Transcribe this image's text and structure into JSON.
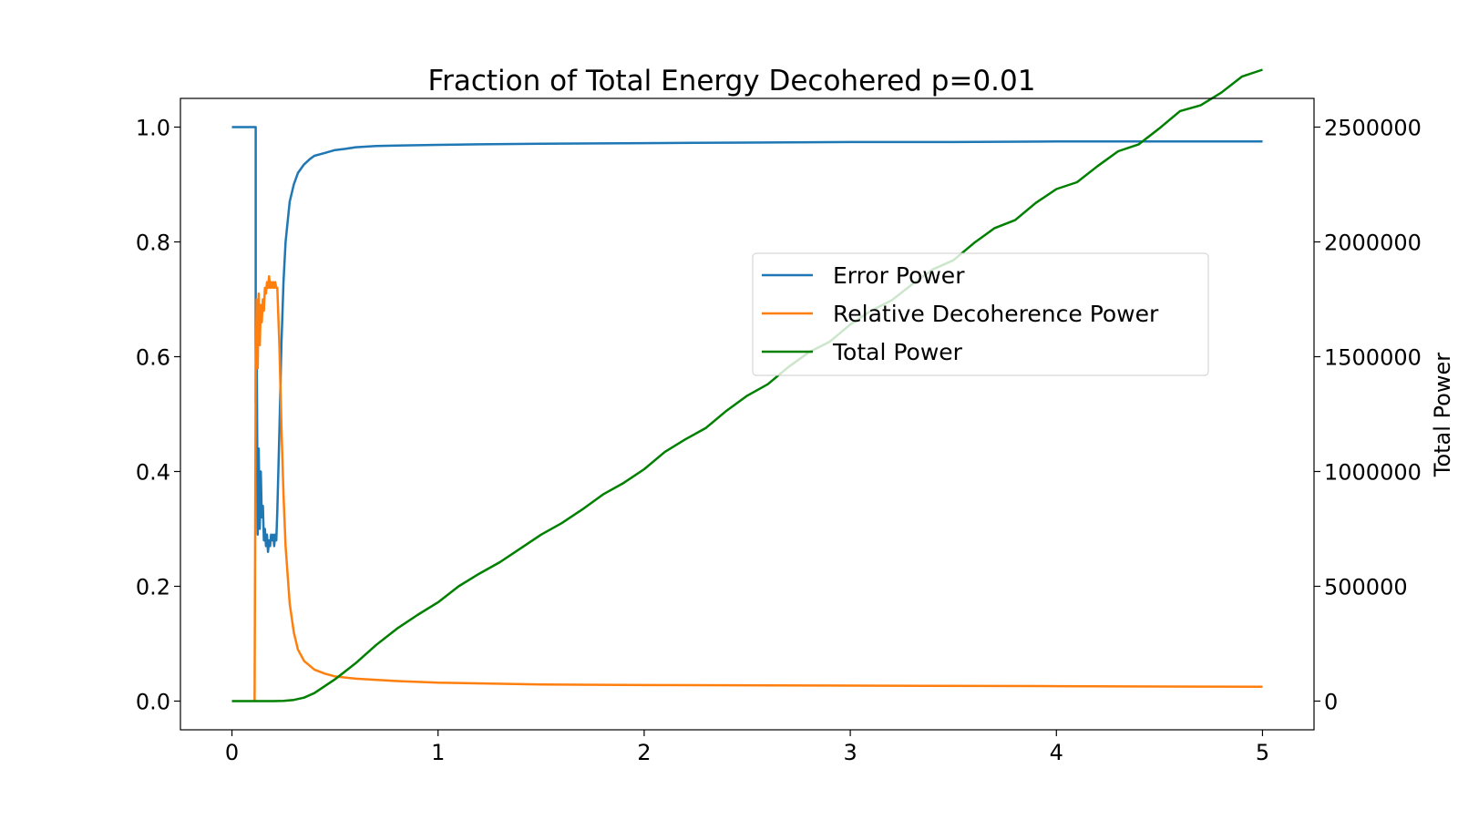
{
  "chart_data": {
    "type": "line",
    "title": "Fraction of Total Energy Decohered p=0.01",
    "xlabel": "",
    "ylabel": "",
    "y2label": "Total Power",
    "xlim": [
      -0.25,
      5.25
    ],
    "ylim": [
      -0.05,
      1.05
    ],
    "y2lim": [
      -125000,
      2625000
    ],
    "xticks": [
      0,
      1,
      2,
      3,
      4,
      5
    ],
    "xtick_labels": [
      "0",
      "1",
      "2",
      "3",
      "4",
      "5"
    ],
    "yticks": [
      0.0,
      0.2,
      0.4,
      0.6,
      0.8,
      1.0
    ],
    "ytick_labels": [
      "0.0",
      "0.2",
      "0.4",
      "0.6",
      "0.8",
      "1.0"
    ],
    "y2ticks": [
      0,
      500000,
      1000000,
      1500000,
      2000000,
      2500000
    ],
    "y2tick_labels": [
      "0",
      "500000",
      "1000000",
      "1500000",
      "2000000",
      "2500000"
    ],
    "grid": false,
    "legend_position": "center-right",
    "series": [
      {
        "name": "Error Power",
        "axis": "left",
        "color": "#1f77b4",
        "x": [
          0,
          0.11,
          0.115,
          0.115,
          0.12,
          0.125,
          0.13,
          0.135,
          0.14,
          0.145,
          0.15,
          0.155,
          0.16,
          0.165,
          0.17,
          0.175,
          0.18,
          0.185,
          0.19,
          0.195,
          0.2,
          0.205,
          0.21,
          0.215,
          0.22,
          0.23,
          0.24,
          0.25,
          0.26,
          0.28,
          0.3,
          0.32,
          0.35,
          0.38,
          0.4,
          0.45,
          0.5,
          0.55,
          0.6,
          0.7,
          0.8,
          1.0,
          1.2,
          1.5,
          2.0,
          2.5,
          3.0,
          3.5,
          4.0,
          4.5,
          5.0
        ],
        "y": [
          1.0,
          1.0,
          1.0,
          0.52,
          0.62,
          0.29,
          0.44,
          0.3,
          0.4,
          0.32,
          0.34,
          0.28,
          0.3,
          0.27,
          0.29,
          0.26,
          0.28,
          0.27,
          0.29,
          0.28,
          0.29,
          0.27,
          0.29,
          0.28,
          0.33,
          0.47,
          0.62,
          0.73,
          0.8,
          0.87,
          0.9,
          0.92,
          0.935,
          0.945,
          0.95,
          0.955,
          0.96,
          0.962,
          0.965,
          0.967,
          0.968,
          0.969,
          0.97,
          0.971,
          0.972,
          0.973,
          0.974,
          0.974,
          0.975,
          0.975,
          0.975
        ]
      },
      {
        "name": "Relative Decoherence Power",
        "axis": "left",
        "color": "#ff7f0e",
        "x": [
          0.11,
          0.115,
          0.12,
          0.125,
          0.13,
          0.135,
          0.14,
          0.145,
          0.15,
          0.155,
          0.16,
          0.165,
          0.17,
          0.175,
          0.18,
          0.185,
          0.19,
          0.195,
          0.2,
          0.205,
          0.21,
          0.215,
          0.22,
          0.23,
          0.24,
          0.25,
          0.26,
          0.28,
          0.3,
          0.32,
          0.35,
          0.4,
          0.45,
          0.5,
          0.6,
          0.8,
          1.0,
          1.5,
          2.0,
          3.0,
          4.0,
          5.0
        ],
        "y": [
          0.0,
          0.57,
          0.7,
          0.58,
          0.71,
          0.62,
          0.69,
          0.66,
          0.7,
          0.68,
          0.72,
          0.71,
          0.73,
          0.72,
          0.74,
          0.72,
          0.73,
          0.72,
          0.73,
          0.72,
          0.73,
          0.72,
          0.72,
          0.62,
          0.48,
          0.36,
          0.27,
          0.17,
          0.12,
          0.09,
          0.07,
          0.055,
          0.048,
          0.043,
          0.039,
          0.035,
          0.032,
          0.029,
          0.028,
          0.027,
          0.026,
          0.025
        ]
      },
      {
        "name": "Total Power",
        "axis": "right",
        "color": "#008000",
        "x": [
          0,
          0.1,
          0.2,
          0.25,
          0.3,
          0.35,
          0.4,
          0.5,
          0.6,
          0.7,
          0.8,
          0.9,
          1.0,
          1.1,
          1.2,
          1.3,
          1.4,
          1.5,
          1.6,
          1.7,
          1.8,
          1.9,
          2.0,
          2.1,
          2.2,
          2.3,
          2.4,
          2.5,
          2.6,
          2.7,
          2.8,
          2.9,
          3.0,
          3.1,
          3.2,
          3.3,
          3.4,
          3.5,
          3.6,
          3.7,
          3.8,
          3.9,
          4.0,
          4.1,
          4.2,
          4.3,
          4.4,
          4.5,
          4.6,
          4.7,
          4.8,
          4.9,
          5.0
        ],
        "y": [
          0,
          0,
          0,
          1000,
          5000,
          15000,
          35000,
          95000,
          165000,
          245000,
          315000,
          375000,
          430000,
          500000,
          555000,
          605000,
          665000,
          725000,
          775000,
          835000,
          900000,
          950000,
          1010000,
          1085000,
          1140000,
          1190000,
          1265000,
          1330000,
          1380000,
          1455000,
          1520000,
          1565000,
          1640000,
          1700000,
          1745000,
          1815000,
          1880000,
          1920000,
          1995000,
          2060000,
          2095000,
          2170000,
          2230000,
          2260000,
          2330000,
          2395000,
          2425000,
          2495000,
          2570000,
          2595000,
          2650000,
          2720000,
          2750000
        ]
      }
    ]
  }
}
